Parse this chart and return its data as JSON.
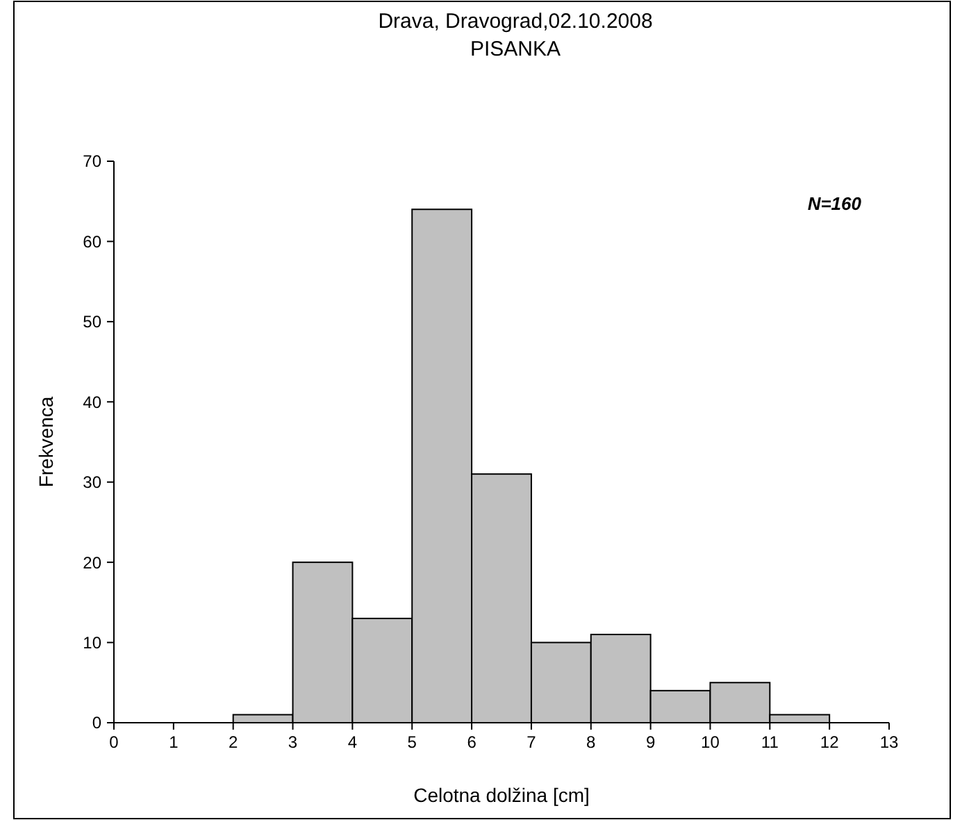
{
  "chart_data": {
    "type": "histogram",
    "title": "Drava, Dravograd,02.10.2008",
    "subtitle": "PISANKA",
    "xlabel": "Celotna dolžina [cm]",
    "ylabel": "Frekvenca",
    "bins": [
      0,
      1,
      2,
      3,
      4,
      5,
      6,
      7,
      8,
      9,
      10,
      11,
      12,
      13
    ],
    "values": [
      0,
      0,
      1,
      20,
      13,
      64,
      31,
      10,
      11,
      4,
      5,
      1,
      0
    ],
    "color": "#c0c0c0",
    "xlim": [
      0,
      13
    ],
    "xticks": [
      0,
      1,
      2,
      3,
      4,
      5,
      6,
      7,
      8,
      9,
      10,
      11,
      12,
      13
    ],
    "ylim": [
      0,
      70
    ],
    "yticks": [
      0,
      10,
      20,
      30,
      40,
      50,
      60,
      70
    ],
    "annotations": [
      "N=160"
    ],
    "grid": false
  }
}
